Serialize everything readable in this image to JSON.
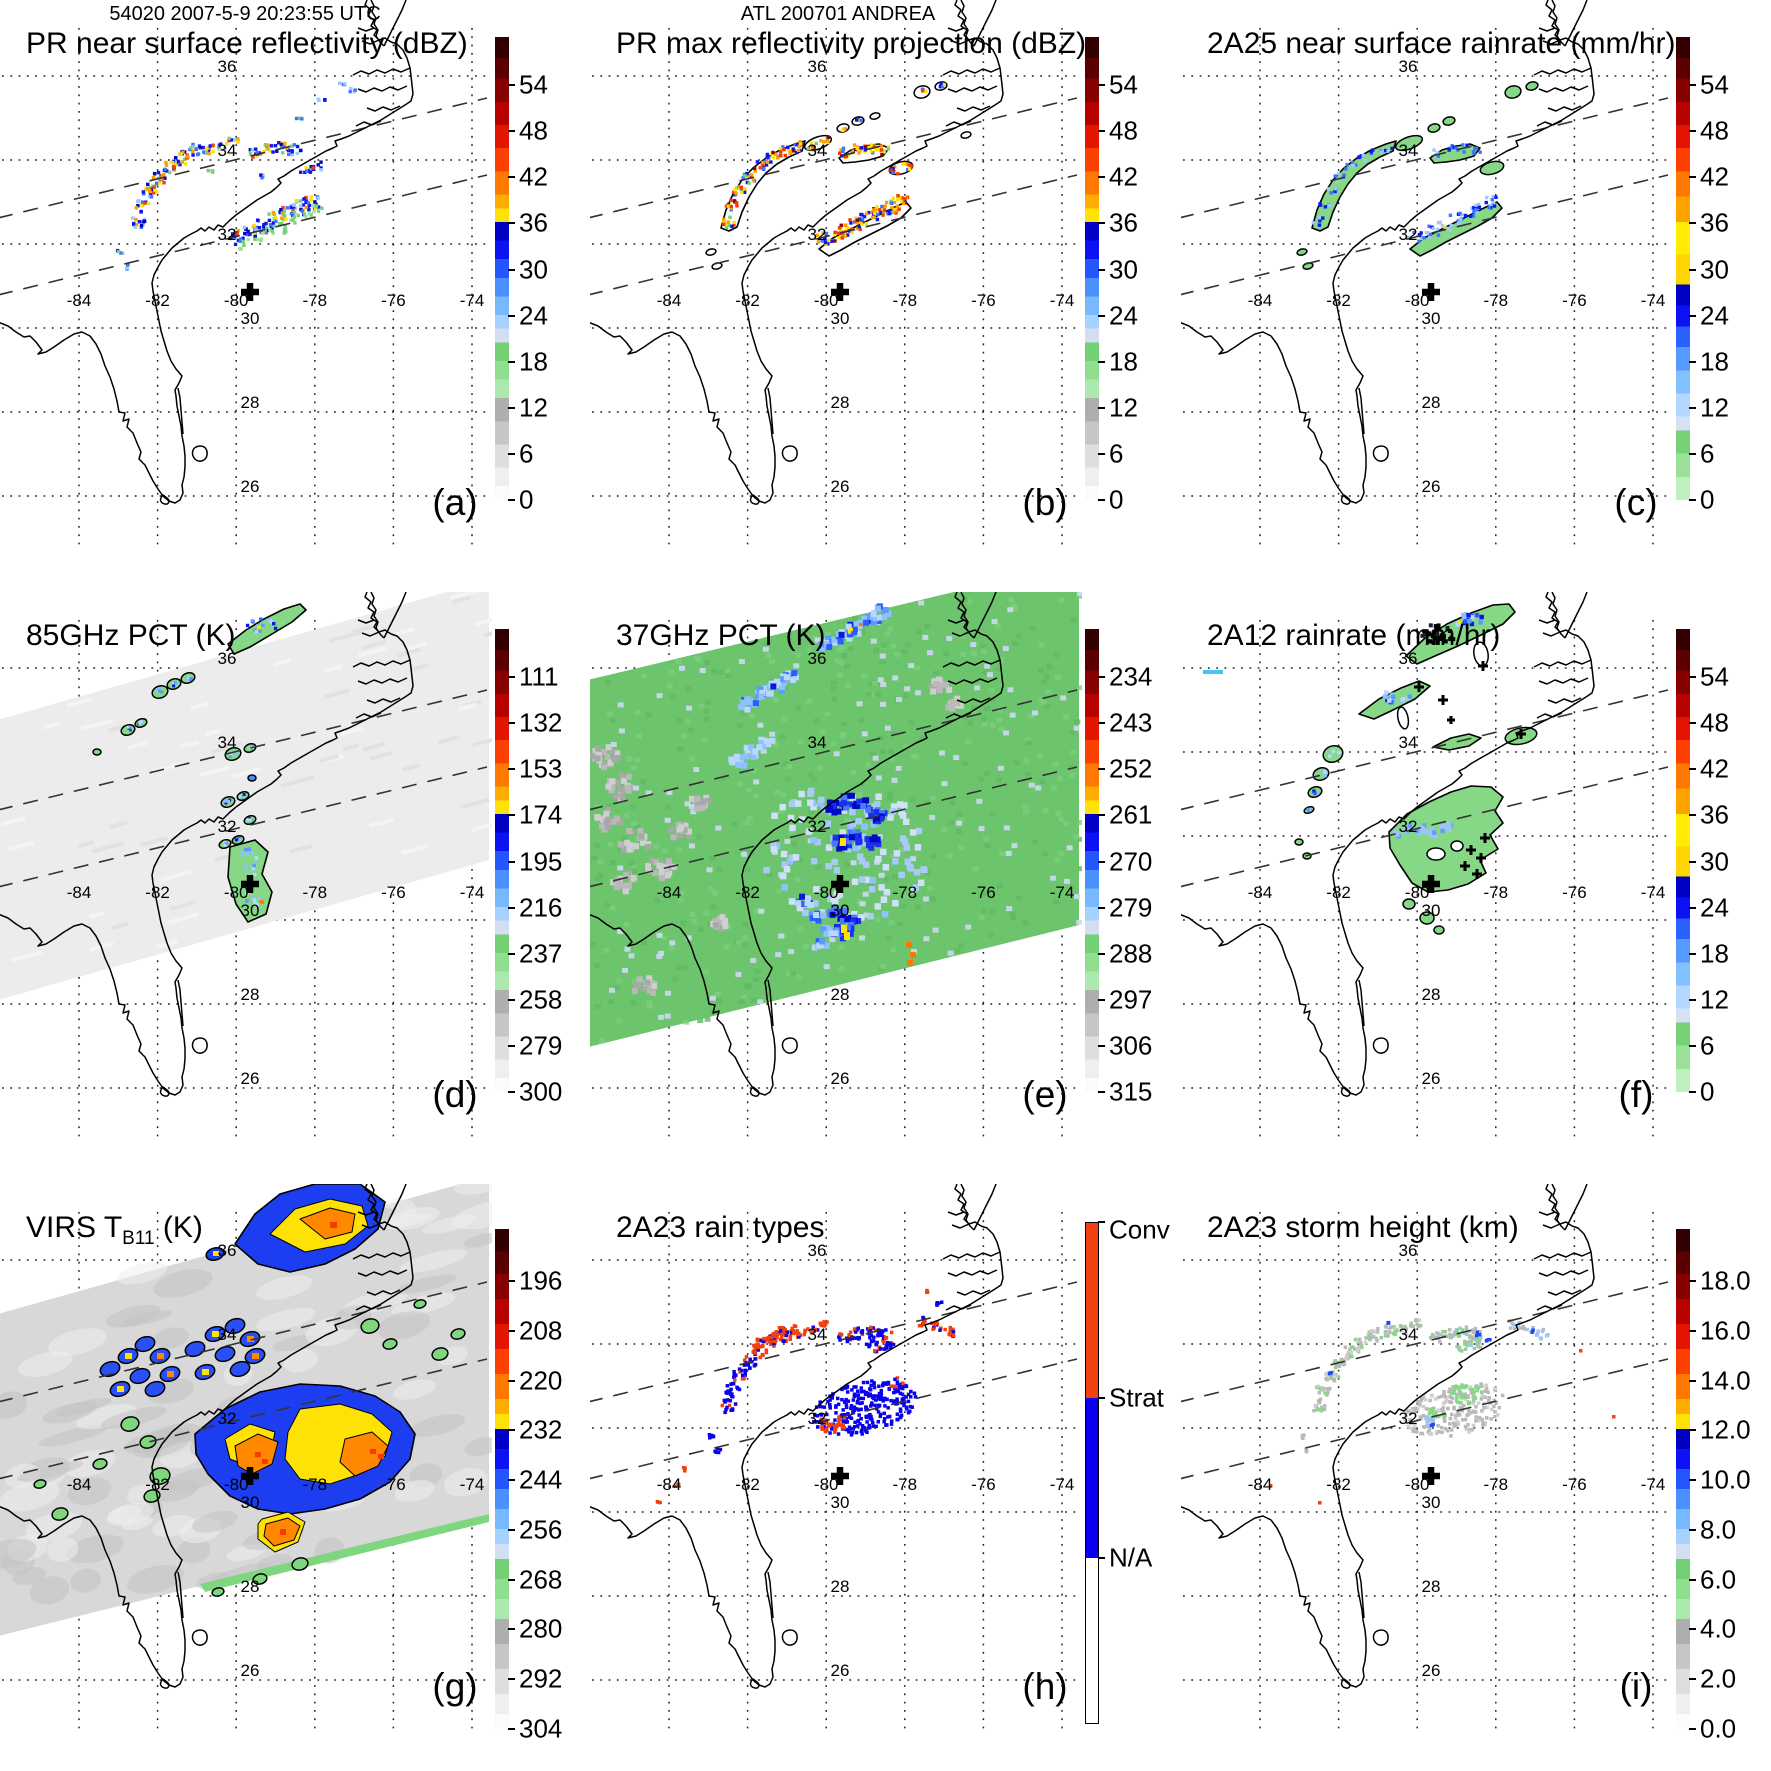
{
  "figure": {
    "header_left": "54020 2007-5-9 20:23:55 UTC",
    "header_center": "ATL 200701 ANDREA"
  },
  "map_labels": {
    "lons": [
      "-84",
      "-82",
      "-80",
      "-78",
      "-76",
      "-74"
    ],
    "lats_upper": [
      "36",
      "34",
      "32"
    ],
    "lats_lower": [
      "30",
      "28",
      "26"
    ]
  },
  "panels": [
    {
      "id": "a",
      "letter": "(a)",
      "title": "PR near surface reflectivity (dBZ)",
      "cbar": "reflectivity",
      "ticks": [
        "54",
        "48",
        "42",
        "36",
        "30",
        "24",
        "18",
        "12",
        "6",
        "0"
      ]
    },
    {
      "id": "b",
      "letter": "(b)",
      "title": "PR max reflectivity projection (dBZ)",
      "cbar": "reflectivity",
      "ticks": [
        "54",
        "48",
        "42",
        "36",
        "30",
        "24",
        "18",
        "12",
        "6",
        "0"
      ]
    },
    {
      "id": "c",
      "letter": "(c)",
      "title": "2A25 near surface rainrate (mm/hr)",
      "cbar": "rainrate",
      "ticks": [
        "54",
        "48",
        "42",
        "36",
        "30",
        "24",
        "18",
        "12",
        "6",
        "0"
      ]
    },
    {
      "id": "d",
      "letter": "(d)",
      "title": "85GHz PCT (K)",
      "cbar": "reflectivity",
      "ticks": [
        "111",
        "132",
        "153",
        "174",
        "195",
        "216",
        "237",
        "258",
        "279",
        "300"
      ]
    },
    {
      "id": "e",
      "letter": "(e)",
      "title": "37GHz PCT (K)",
      "cbar": "reflectivity",
      "ticks": [
        "234",
        "243",
        "252",
        "261",
        "270",
        "279",
        "288",
        "297",
        "306",
        "315"
      ]
    },
    {
      "id": "f",
      "letter": "(f)",
      "title": "2A12 rainrate (mm/hr)",
      "cbar": "rainrate",
      "ticks": [
        "54",
        "48",
        "42",
        "36",
        "30",
        "24",
        "18",
        "12",
        "6",
        "0"
      ]
    },
    {
      "id": "g",
      "letter": "(g)",
      "title": "VIRS T",
      "title_sub": "B11",
      "title_suffix": " (K)",
      "cbar": "reflectivity",
      "ticks": [
        "196",
        "208",
        "220",
        "232",
        "244",
        "256",
        "268",
        "280",
        "292",
        "304"
      ]
    },
    {
      "id": "h",
      "letter": "(h)",
      "title": "2A23 rain types",
      "cbar": "raintype",
      "segment_labels": [
        "Conv",
        "Strat",
        "N/A"
      ]
    },
    {
      "id": "i",
      "letter": "(i)",
      "title": "2A23 storm height (km)",
      "cbar": "reflectivity",
      "ticks": [
        "18.0",
        "16.0",
        "14.0",
        "12.0",
        "10.0",
        "8.0",
        "6.0",
        "4.0",
        "2.0",
        "0.0"
      ]
    }
  ],
  "colorbars": {
    "reflectivity": {
      "stops": [
        [
          0,
          "#330001"
        ],
        [
          4.5,
          "#5a0000"
        ],
        [
          9,
          "#870000"
        ],
        [
          14,
          "#b80200"
        ],
        [
          19,
          "#e31400"
        ],
        [
          24,
          "#fb4000"
        ],
        [
          29,
          "#ff7800"
        ],
        [
          34,
          "#ffad00"
        ],
        [
          37,
          "#ffe205"
        ],
        [
          40,
          "#0000c4"
        ],
        [
          44,
          "#0d12f2"
        ],
        [
          48,
          "#2456ff"
        ],
        [
          52,
          "#4a90ff"
        ],
        [
          56,
          "#78b8ff"
        ],
        [
          60,
          "#a6d2ff"
        ],
        [
          63,
          "#d2def2"
        ],
        [
          66,
          "#74d074"
        ],
        [
          70,
          "#90de90"
        ],
        [
          74,
          "#ace9ac"
        ],
        [
          78,
          "#aeaeae"
        ],
        [
          83,
          "#c6c6c6"
        ],
        [
          88,
          "#dedede"
        ],
        [
          93,
          "#efefef"
        ],
        [
          97,
          "#fbfbfb"
        ]
      ]
    },
    "rainrate": {
      "stops": [
        [
          0,
          "#330001"
        ],
        [
          4.5,
          "#5a0000"
        ],
        [
          9,
          "#870000"
        ],
        [
          14,
          "#b80200"
        ],
        [
          19,
          "#e31400"
        ],
        [
          24,
          "#fb4000"
        ],
        [
          29,
          "#ff7800"
        ],
        [
          34.5,
          "#ffa300"
        ],
        [
          40,
          "#ffeb05"
        ],
        [
          47,
          "#ffd400"
        ],
        [
          53.5,
          "#0000c4"
        ],
        [
          58,
          "#0d12f2"
        ],
        [
          62.5,
          "#2a62ff"
        ],
        [
          67,
          "#549aff"
        ],
        [
          72,
          "#83c0ff"
        ],
        [
          77,
          "#b2d8ff"
        ],
        [
          82,
          "#d6e2f4"
        ],
        [
          85,
          "#77d177"
        ],
        [
          90,
          "#99e099"
        ],
        [
          95,
          "#bfefbf"
        ]
      ]
    },
    "raintype": {
      "colors": [
        "#f2410e",
        "#0a00f0",
        "#ffffff"
      ],
      "fractions": [
        0,
        0.35,
        0.67,
        1
      ]
    }
  }
}
